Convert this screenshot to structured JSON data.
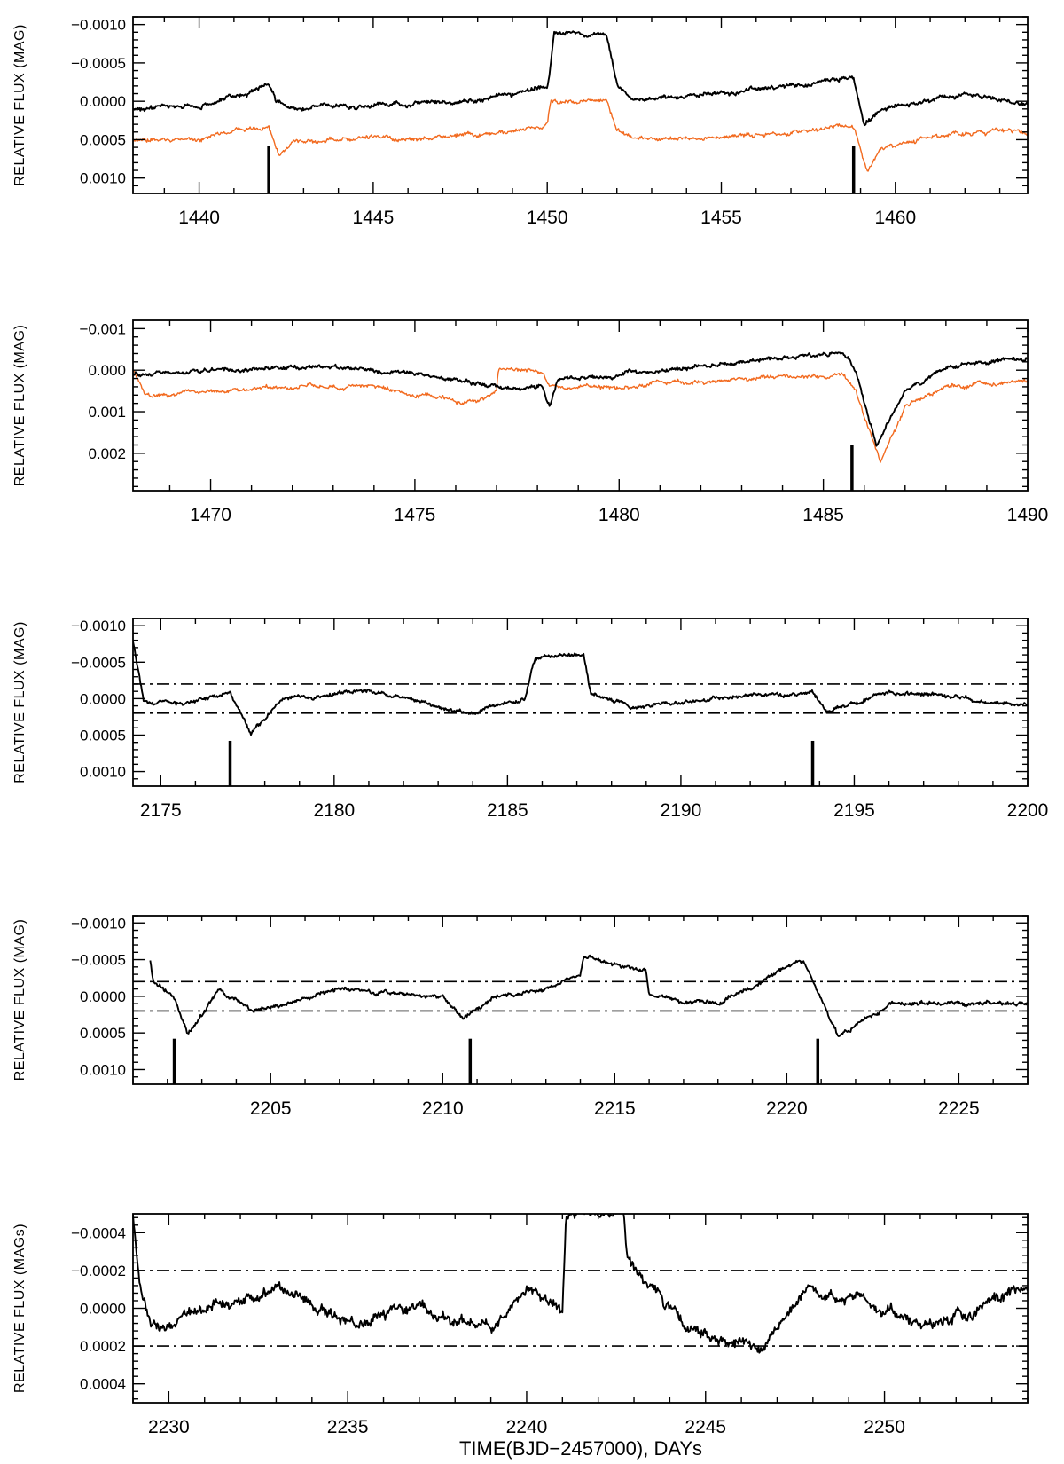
{
  "figure": {
    "xlabel": "TIME(BJD−2457000), DAYs",
    "colors": {
      "main": "#000000",
      "secondary": "#f26a1f"
    }
  },
  "chart_data": [
    {
      "type": "line",
      "ylabel": "RELATIVE FLUX (MAG)",
      "xlim": [
        1438.1,
        1463.8
      ],
      "ylim": [
        0.0012,
        -0.0011
      ],
      "xticks": [
        1440,
        1445,
        1450,
        1455,
        1460
      ],
      "xtick_labels": [
        "1440",
        "1445",
        "1450",
        "1455",
        "1460"
      ],
      "yticks": [
        -0.001,
        -0.0005,
        0.0,
        0.0005,
        0.001
      ],
      "ytick_labels": [
        "−0.0010",
        "−0.0005",
        "0.0000",
        "0.0005",
        "0.0010"
      ],
      "series": [
        {
          "color": "#000000",
          "x": [
            1438.1,
            1440.0,
            1442.0,
            1442.2,
            1442.7,
            1445.0,
            1448.0,
            1450.0,
            1450.05,
            1450.2,
            1451.7,
            1452.0,
            1452.5,
            1455.0,
            1457.0,
            1458.8,
            1459.1,
            1459.6,
            1462.0,
            1463.8
          ],
          "y": [
            0.0001,
            5e-05,
            -0.0002,
            0.0,
            0.0001,
            5e-05,
            0.0,
            -0.0002,
            -0.0003,
            -0.00088,
            -0.00085,
            -0.0002,
            0.0,
            -0.0001,
            -0.0002,
            -0.0003,
            0.0003,
            0.0001,
            -0.0001,
            5e-05
          ]
        },
        {
          "color": "#f26a1f",
          "x": [
            1438.1,
            1440.0,
            1442.0,
            1442.3,
            1442.7,
            1445.0,
            1448.0,
            1450.0,
            1450.1,
            1451.7,
            1452.0,
            1452.5,
            1455.0,
            1457.0,
            1458.8,
            1459.2,
            1459.6,
            1462.0,
            1463.8
          ],
          "y": [
            0.0005,
            0.0005,
            0.0003,
            0.0007,
            0.0005,
            0.0005,
            0.00045,
            0.0003,
            0.0,
            0.0,
            0.0004,
            0.0005,
            0.00045,
            0.0004,
            0.0003,
            0.0009,
            0.0006,
            0.0004,
            0.0004
          ]
        }
      ],
      "event_markers": [
        1442.0,
        1458.8
      ]
    },
    {
      "type": "line",
      "ylabel": "RELATIVE FLUX (MAG)",
      "xlim": [
        1468.1,
        1490.0
      ],
      "ylim": [
        0.0029,
        -0.0012
      ],
      "xticks": [
        1470,
        1475,
        1480,
        1485,
        1490
      ],
      "xtick_labels": [
        "1470",
        "1475",
        "1480",
        "1485",
        "1490"
      ],
      "yticks": [
        -0.001,
        0.0,
        0.001,
        0.002
      ],
      "ytick_labels": [
        "−0.001",
        "0.000",
        "0.001",
        "0.002"
      ],
      "series": [
        {
          "color": "#000000",
          "x": [
            1468.1,
            1470.0,
            1472.0,
            1474.0,
            1476.5,
            1477.0,
            1477.05,
            1478.1,
            1478.3,
            1478.5,
            1480.0,
            1483.0,
            1485.5,
            1485.8,
            1486.3,
            1487.0,
            1488.0,
            1490.0
          ],
          "y": [
            0.0001,
            0.0,
            -0.0001,
            0.0,
            0.0003,
            0.0004,
            0.0004,
            0.0004,
            0.0009,
            0.0002,
            0.0001,
            -0.0002,
            -0.0004,
            0.0,
            0.0018,
            0.0005,
            -0.0001,
            -0.0003
          ]
        },
        {
          "color": "#f26a1f",
          "x": [
            1468.1,
            1468.4,
            1470.0,
            1472.0,
            1474.0,
            1476.5,
            1477.0,
            1477.05,
            1478.1,
            1478.3,
            1480.0,
            1483.0,
            1485.5,
            1485.8,
            1486.4,
            1487.0,
            1488.0,
            1490.0
          ],
          "y": [
            0.0,
            0.0006,
            0.0005,
            0.0004,
            0.0004,
            0.0008,
            0.0005,
            0.0,
            0.0,
            0.0004,
            0.0004,
            0.0002,
            0.0001,
            0.0005,
            0.0022,
            0.0009,
            0.0004,
            0.0002
          ]
        }
      ],
      "event_markers": [
        1485.7
      ]
    },
    {
      "type": "line",
      "ylabel": "RELATIVE FLUX (MAG)",
      "xlim": [
        2174.2,
        2200.0
      ],
      "ylim": [
        0.0012,
        -0.0011
      ],
      "xticks": [
        2175,
        2180,
        2185,
        2190,
        2195,
        2200
      ],
      "xtick_labels": [
        "2175",
        "2180",
        "2185",
        "2190",
        "2195",
        "2200"
      ],
      "yticks": [
        -0.001,
        -0.0005,
        0.0,
        0.0005,
        0.001
      ],
      "ytick_labels": [
        "−0.0010",
        "−0.0005",
        "0.0000",
        "0.0005",
        "0.0010"
      ],
      "series": [
        {
          "color": "#000000",
          "x": [
            2174.2,
            2174.5,
            2175.5,
            2177.0,
            2177.6,
            2178.5,
            2181.0,
            2184.0,
            2185.5,
            2185.8,
            2187.2,
            2187.4,
            2188.5,
            2191.0,
            2193.8,
            2194.2,
            2196.0,
            2200.0
          ],
          "y": [
            -0.0008,
            0.0,
            0.0001,
            -0.0001,
            0.0005,
            0.0,
            -0.0001,
            0.0002,
            0.0,
            -0.00055,
            -0.0006,
            -0.0001,
            0.0001,
            0.0,
            -0.0001,
            0.0002,
            -0.0001,
            0.0001
          ]
        }
      ],
      "hlines": [
        -0.0002,
        0.0002
      ],
      "event_markers": [
        2177.0,
        2193.8
      ]
    },
    {
      "type": "line",
      "ylabel": "RELATIVE FLUX (MAG)",
      "xlim": [
        2201.0,
        2227.0
      ],
      "ylim": [
        0.0012,
        -0.0011
      ],
      "xticks": [
        2205,
        2210,
        2215,
        2220,
        2225
      ],
      "xtick_labels": [
        "2205",
        "2210",
        "2215",
        "2220",
        "2225"
      ],
      "yticks": [
        -0.001,
        -0.0005,
        0.0,
        0.0005,
        0.001
      ],
      "ytick_labels": [
        "−0.0010",
        "−0.0005",
        "0.0000",
        "0.0005",
        "0.0010"
      ],
      "series": [
        {
          "color": "#000000",
          "x": [
            2201.5,
            2201.6,
            2202.2,
            2202.6,
            2203.5,
            2204.5,
            2207.0,
            2210.0,
            2210.6,
            2211.5,
            2213.0,
            2214.0,
            2214.1,
            2215.9,
            2216.0,
            2218.0,
            2220.5,
            2221.0,
            2221.5,
            2223.0,
            2227.0
          ],
          "y": [
            -0.0005,
            -0.0002,
            0.0,
            0.0005,
            -0.0001,
            0.0002,
            -0.0001,
            0.0,
            0.0003,
            0.0,
            -0.0001,
            -0.0003,
            -0.00055,
            -0.00035,
            0.0,
            0.0001,
            -0.0005,
            0.0,
            0.00055,
            0.0001,
            0.0001
          ]
        }
      ],
      "hlines": [
        -0.0002,
        0.0002
      ],
      "event_markers": [
        2202.2,
        2210.8,
        2220.9
      ]
    },
    {
      "type": "line",
      "ylabel": "RELATIVE FLUX (MAGs)",
      "xlim": [
        2229.0,
        2254.0
      ],
      "ylim": [
        0.0005,
        -0.0005
      ],
      "xticks": [
        2230,
        2235,
        2240,
        2245,
        2250
      ],
      "xtick_labels": [
        "2230",
        "2235",
        "2240",
        "2245",
        "2250"
      ],
      "yticks": [
        -0.0004,
        -0.0002,
        0.0,
        0.0002,
        0.0004
      ],
      "ytick_labels": [
        "−0.0004",
        "−0.0002",
        "0.0000",
        "0.0002",
        "0.0004"
      ],
      "series": [
        {
          "color": "#000000",
          "x": [
            2229.0,
            2229.2,
            2229.5,
            2231.0,
            2233.0,
            2235.0,
            2237.0,
            2239.0,
            2240.0,
            2241.0,
            2241.1,
            2242.7,
            2242.8,
            2243.5,
            2244.5,
            2246.5,
            2248.0,
            2250.0,
            2251.0,
            2252.5,
            2254.0
          ],
          "y": [
            -0.0005,
            -0.0001,
            0.0001,
            0.0,
            -0.0001,
            0.0001,
            0.0,
            0.0001,
            -0.0001,
            0.0,
            -0.0005,
            -0.0005,
            -0.00025,
            -0.0001,
            0.0001,
            0.0002,
            -0.0001,
            0.0,
            0.0001,
            0.0,
            -0.0001
          ]
        }
      ],
      "hlines": [
        -0.0002,
        0.0002
      ]
    }
  ]
}
